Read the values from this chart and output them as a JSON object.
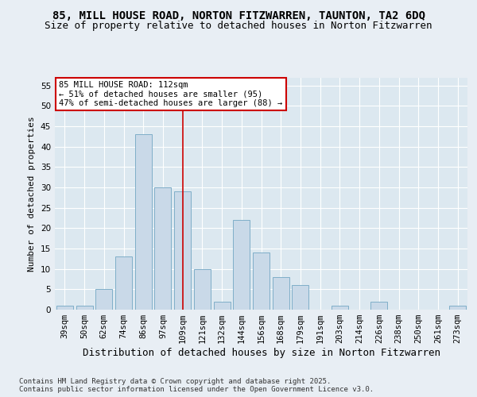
{
  "title1": "85, MILL HOUSE ROAD, NORTON FITZWARREN, TAUNTON, TA2 6DQ",
  "title2": "Size of property relative to detached houses in Norton Fitzwarren",
  "xlabel": "Distribution of detached houses by size in Norton Fitzwarren",
  "ylabel": "Number of detached properties",
  "categories": [
    "39sqm",
    "50sqm",
    "62sqm",
    "74sqm",
    "86sqm",
    "97sqm",
    "109sqm",
    "121sqm",
    "132sqm",
    "144sqm",
    "156sqm",
    "168sqm",
    "179sqm",
    "191sqm",
    "203sqm",
    "214sqm",
    "226sqm",
    "238sqm",
    "250sqm",
    "261sqm",
    "273sqm"
  ],
  "values": [
    1,
    1,
    5,
    13,
    43,
    30,
    29,
    10,
    2,
    22,
    14,
    8,
    6,
    0,
    1,
    0,
    2,
    0,
    0,
    0,
    1
  ],
  "bar_color": "#c9d9e8",
  "bar_edge_color": "#7faec8",
  "vline_x": 6,
  "vline_color": "#cc0000",
  "annotation_text": "85 MILL HOUSE ROAD: 112sqm\n← 51% of detached houses are smaller (95)\n47% of semi-detached houses are larger (88) →",
  "annotation_box_color": "#ffffff",
  "annotation_box_edge": "#cc0000",
  "ylim": [
    0,
    57
  ],
  "yticks": [
    0,
    5,
    10,
    15,
    20,
    25,
    30,
    35,
    40,
    45,
    50,
    55
  ],
  "bg_color": "#e8eef4",
  "plot_bg_color": "#dce8f0",
  "footer": "Contains HM Land Registry data © Crown copyright and database right 2025.\nContains public sector information licensed under the Open Government Licence v3.0.",
  "title1_fontsize": 10,
  "title2_fontsize": 9,
  "xlabel_fontsize": 9,
  "ylabel_fontsize": 8,
  "tick_fontsize": 7.5,
  "footer_fontsize": 6.5,
  "annot_fontsize": 7.5
}
